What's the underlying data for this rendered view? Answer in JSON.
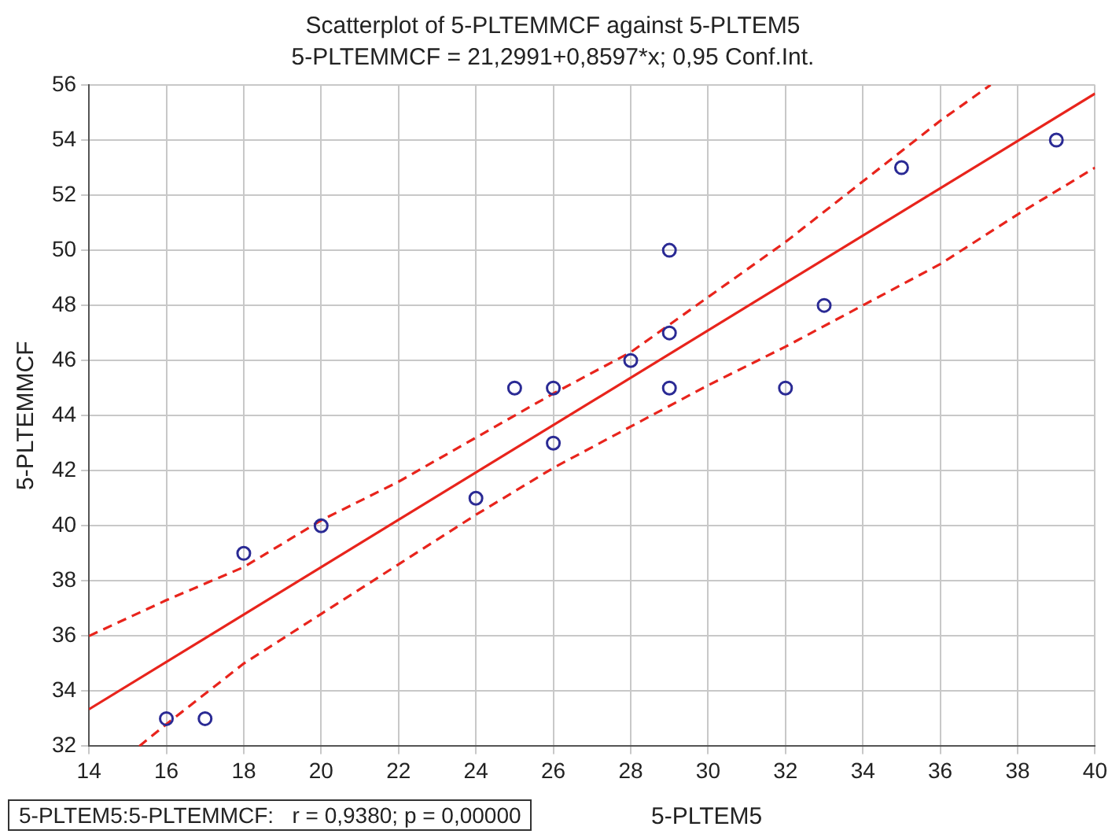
{
  "chart_data": {
    "type": "scatter",
    "title": "Scatterplot of 5-PLTEMMCF against 5-PLTEM5",
    "subtitle": "5-PLTEMMCF = 21,2991+0,8597*x; 0,95 Conf.Int.",
    "xlabel": "5-PLTEM5",
    "ylabel": "5-PLTEMMCF",
    "series": [
      {
        "color": "#2a2a94",
        "marker": "circle",
        "x": [
          16,
          17,
          18,
          20,
          24,
          25,
          26,
          26,
          28,
          29,
          29,
          29,
          32,
          33,
          35,
          39
        ],
        "values": [
          33,
          33,
          39,
          40,
          41,
          45,
          45,
          43,
          46,
          50,
          47,
          45,
          45,
          48,
          53,
          54
        ]
      },
      {
        "type": "line",
        "color": "#e8241c",
        "marker": "none",
        "line_style": "solid",
        "x": [
          14,
          40
        ],
        "values": [
          33.34,
          55.69
        ]
      },
      {
        "type": "line",
        "color": "#e8241c",
        "marker": "none",
        "line_style": "dashed",
        "x": [
          14,
          16,
          18,
          20,
          22,
          24,
          26,
          28,
          30,
          32,
          34,
          36,
          37.3
        ],
        "values": [
          36,
          37.3,
          38.5,
          40.2,
          41.6,
          43.2,
          44.8,
          46.3,
          48.3,
          50.3,
          52.5,
          54.7,
          56
        ]
      },
      {
        "type": "line",
        "color": "#e8241c",
        "marker": "none",
        "line_style": "dashed",
        "x": [
          15.3,
          16,
          18,
          20,
          22,
          24,
          26,
          28,
          30,
          32,
          34,
          36,
          38,
          40
        ],
        "values": [
          32,
          32.8,
          35,
          36.8,
          38.6,
          40.4,
          42.1,
          43.6,
          45.1,
          46.5,
          48,
          49.5,
          51.3,
          53
        ]
      }
    ],
    "xlim": [
      14,
      40
    ],
    "xticks": [
      14,
      16,
      18,
      20,
      22,
      24,
      26,
      28,
      30,
      32,
      34,
      36,
      38,
      40
    ],
    "ylim": [
      32,
      56
    ],
    "yticks": [
      32,
      34,
      36,
      38,
      40,
      42,
      44,
      46,
      48,
      50,
      52,
      54,
      56
    ],
    "grid": true,
    "legend": false,
    "annotations": [
      "5-PLTEM5:5-PLTEMMCF:   r = 0,9380; p = 0,00000"
    ]
  }
}
